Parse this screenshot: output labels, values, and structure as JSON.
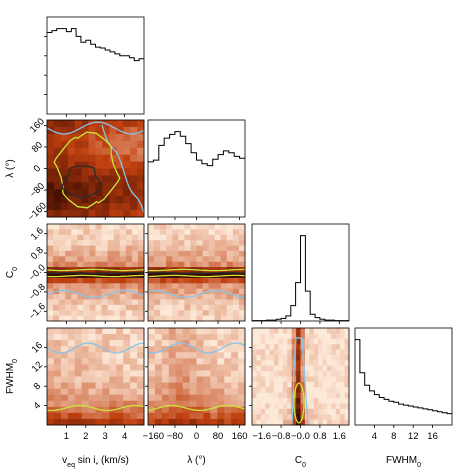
{
  "chart_data": {
    "type": "heatmap",
    "layout": "corner-plot",
    "parameters": [
      {
        "key": "vsini",
        "axis_label": "v_eq sin i* (km/s)",
        "label_main": "v",
        "label_sub": "eq",
        "label_rest": " sin i",
        "label_star": "*",
        "label_tail": " (km/s)",
        "range": [
          0,
          5
        ],
        "ticks": [
          1,
          2,
          3,
          4
        ],
        "tick_labels": [
          "1",
          "2",
          "3",
          "4"
        ]
      },
      {
        "key": "lambda",
        "axis_label": "λ (°)",
        "label_main": "λ (°)",
        "range": [
          -180,
          180
        ],
        "ticks": [
          -160,
          -80,
          0,
          80,
          160
        ],
        "tick_labels": [
          "−160",
          "−80",
          "0",
          "80",
          "160"
        ]
      },
      {
        "key": "C0",
        "axis_label": "C0",
        "label_main": "C",
        "label_sub": "0",
        "range": [
          -2,
          2
        ],
        "ticks": [
          -1.6,
          -0.8,
          0.0,
          0.8,
          1.6
        ],
        "tick_labels": [
          "−1.6",
          "−0.8",
          "−0.0",
          "0.8",
          "1.6"
        ]
      },
      {
        "key": "FWHM0",
        "axis_label": "FWHM0",
        "label_main": "FWHM",
        "label_sub": "0",
        "range": [
          0,
          20
        ],
        "ticks": [
          4,
          8,
          12,
          16
        ],
        "tick_labels": [
          "4",
          "8",
          "12",
          "16"
        ]
      }
    ],
    "marginals": [
      {
        "param": "vsini",
        "counts": [
          0.84,
          0.86,
          0.88,
          0.88,
          0.85,
          0.88,
          0.8,
          0.74,
          0.76,
          0.72,
          0.69,
          0.68,
          0.66,
          0.64,
          0.62,
          0.6,
          0.6,
          0.58,
          0.55,
          0.57
        ]
      },
      {
        "param": "lambda",
        "counts": [
          0.6,
          0.62,
          0.78,
          0.86,
          0.9,
          0.93,
          0.88,
          0.8,
          0.7,
          0.62,
          0.58,
          0.56,
          0.63,
          0.68,
          0.72,
          0.7,
          0.66,
          0.64
        ]
      },
      {
        "param": "C0",
        "counts": [
          0.005,
          0.005,
          0.005,
          0.01,
          0.01,
          0.02,
          0.03,
          0.06,
          0.18,
          0.45,
          1.0,
          0.35,
          0.08,
          0.04,
          0.02,
          0.01,
          0.01,
          0.005,
          0.005,
          0.005
        ]
      },
      {
        "param": "FWHM0",
        "counts": [
          0.9,
          0.55,
          0.42,
          0.36,
          0.32,
          0.29,
          0.27,
          0.25,
          0.24,
          0.22,
          0.21,
          0.2,
          0.19,
          0.18,
          0.17,
          0.16,
          0.15,
          0.14,
          0.13,
          0.12
        ]
      }
    ],
    "contours": {
      "colors": [
        "#89c4e8",
        "#c8e638",
        "#2b2b2b"
      ]
    },
    "colors": {
      "high": "#3a0a02",
      "mid": "#c0400f",
      "low": "#fde9d8"
    }
  }
}
